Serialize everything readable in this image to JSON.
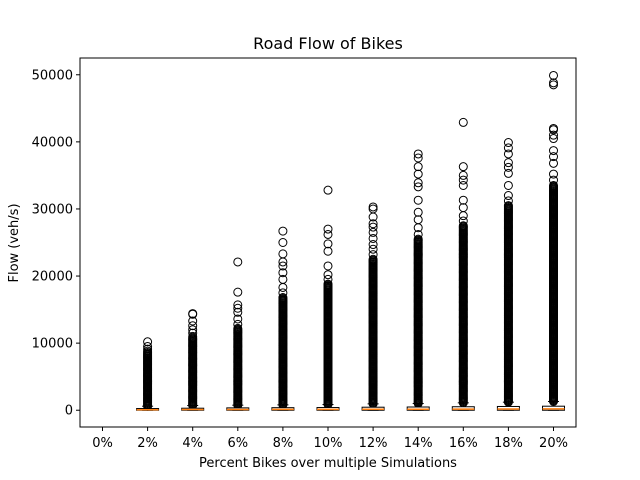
{
  "chart_data": {
    "type": "box",
    "title": "Road Flow of Bikes",
    "xlabel": "Percent Bikes over multiple Simulations",
    "ylabel": "Flow (veh/s)",
    "categories": [
      "0%",
      "2%",
      "4%",
      "6%",
      "8%",
      "10%",
      "12%",
      "14%",
      "16%",
      "18%",
      "20%"
    ],
    "ylim": [
      -2500,
      52500
    ],
    "yticks": [
      0,
      10000,
      20000,
      30000,
      40000,
      50000
    ],
    "ytick_labels": [
      "0",
      "10000",
      "20000",
      "30000",
      "40000",
      "50000"
    ],
    "grid": false,
    "colors": {
      "median": "#ff7f0e",
      "box": "#000000",
      "flier": "#000000"
    },
    "series": [
      {
        "category": "0%",
        "box": null,
        "dense_flier_range": null,
        "outliers": []
      },
      {
        "category": "2%",
        "box": {
          "q1": 0,
          "median": 80,
          "q3": 250,
          "whisker_low": 0,
          "whisker_high": 600
        },
        "dense_flier_range": [
          600,
          8600
        ],
        "outliers": [
          8800,
          9100,
          9500,
          10200
        ]
      },
      {
        "category": "4%",
        "box": {
          "q1": 0,
          "median": 100,
          "q3": 300,
          "whisker_low": 0,
          "whisker_high": 700
        },
        "dense_flier_range": [
          700,
          10800
        ],
        "outliers": [
          11000,
          11500,
          12000,
          12600,
          13300,
          14300,
          14400
        ]
      },
      {
        "category": "6%",
        "box": {
          "q1": 0,
          "median": 100,
          "q3": 350,
          "whisker_low": 0,
          "whisker_high": 750
        },
        "dense_flier_range": [
          750,
          12200
        ],
        "outliers": [
          12800,
          13600,
          14600,
          15200,
          15700,
          17600,
          22100
        ]
      },
      {
        "category": "8%",
        "box": {
          "q1": 0,
          "median": 120,
          "q3": 380,
          "whisker_low": 0,
          "whisker_high": 800
        },
        "dense_flier_range": [
          800,
          16800
        ],
        "outliers": [
          17500,
          18300,
          19500,
          20500,
          21500,
          22100,
          23300,
          25000,
          26700
        ]
      },
      {
        "category": "10%",
        "box": {
          "q1": 0,
          "median": 130,
          "q3": 400,
          "whisker_low": 0,
          "whisker_high": 850
        },
        "dense_flier_range": [
          850,
          18800
        ],
        "outliers": [
          19500,
          20200,
          21500,
          23700,
          24800,
          26200,
          27000,
          32800
        ]
      },
      {
        "category": "12%",
        "box": {
          "q1": 0,
          "median": 150,
          "q3": 450,
          "whisker_low": 0,
          "whisker_high": 950
        },
        "dense_flier_range": [
          950,
          22500
        ],
        "outliers": [
          23200,
          24000,
          24700,
          25600,
          26500,
          27300,
          27800,
          28800,
          30000,
          30300
        ]
      },
      {
        "category": "14%",
        "box": {
          "q1": 0,
          "median": 150,
          "q3": 480,
          "whisker_low": 0,
          "whisker_high": 1000
        },
        "dense_flier_range": [
          1000,
          25500
        ],
        "outliers": [
          26200,
          27200,
          28400,
          29500,
          31300,
          33300,
          33900,
          35200,
          36300,
          37600,
          38200
        ]
      },
      {
        "category": "16%",
        "box": {
          "q1": 0,
          "median": 170,
          "q3": 520,
          "whisker_low": 0,
          "whisker_high": 1100
        },
        "dense_flier_range": [
          1100,
          27500
        ],
        "outliers": [
          28200,
          29000,
          30200,
          31300,
          33500,
          34300,
          35000,
          36300,
          42900
        ]
      },
      {
        "category": "18%",
        "box": {
          "q1": 0,
          "median": 180,
          "q3": 560,
          "whisker_low": 0,
          "whisker_high": 1200
        },
        "dense_flier_range": [
          1200,
          30500
        ],
        "outliers": [
          31200,
          32000,
          33500,
          35300,
          36200,
          36900,
          38200,
          39100,
          39900
        ]
      },
      {
        "category": "20%",
        "box": {
          "q1": 0,
          "median": 200,
          "q3": 600,
          "whisker_low": 0,
          "whisker_high": 1300
        },
        "dense_flier_range": [
          1300,
          33500
        ],
        "outliers": [
          34300,
          35200,
          36800,
          37800,
          38700,
          40500,
          41000,
          41800,
          42000,
          48500,
          48800,
          49900
        ]
      }
    ]
  }
}
